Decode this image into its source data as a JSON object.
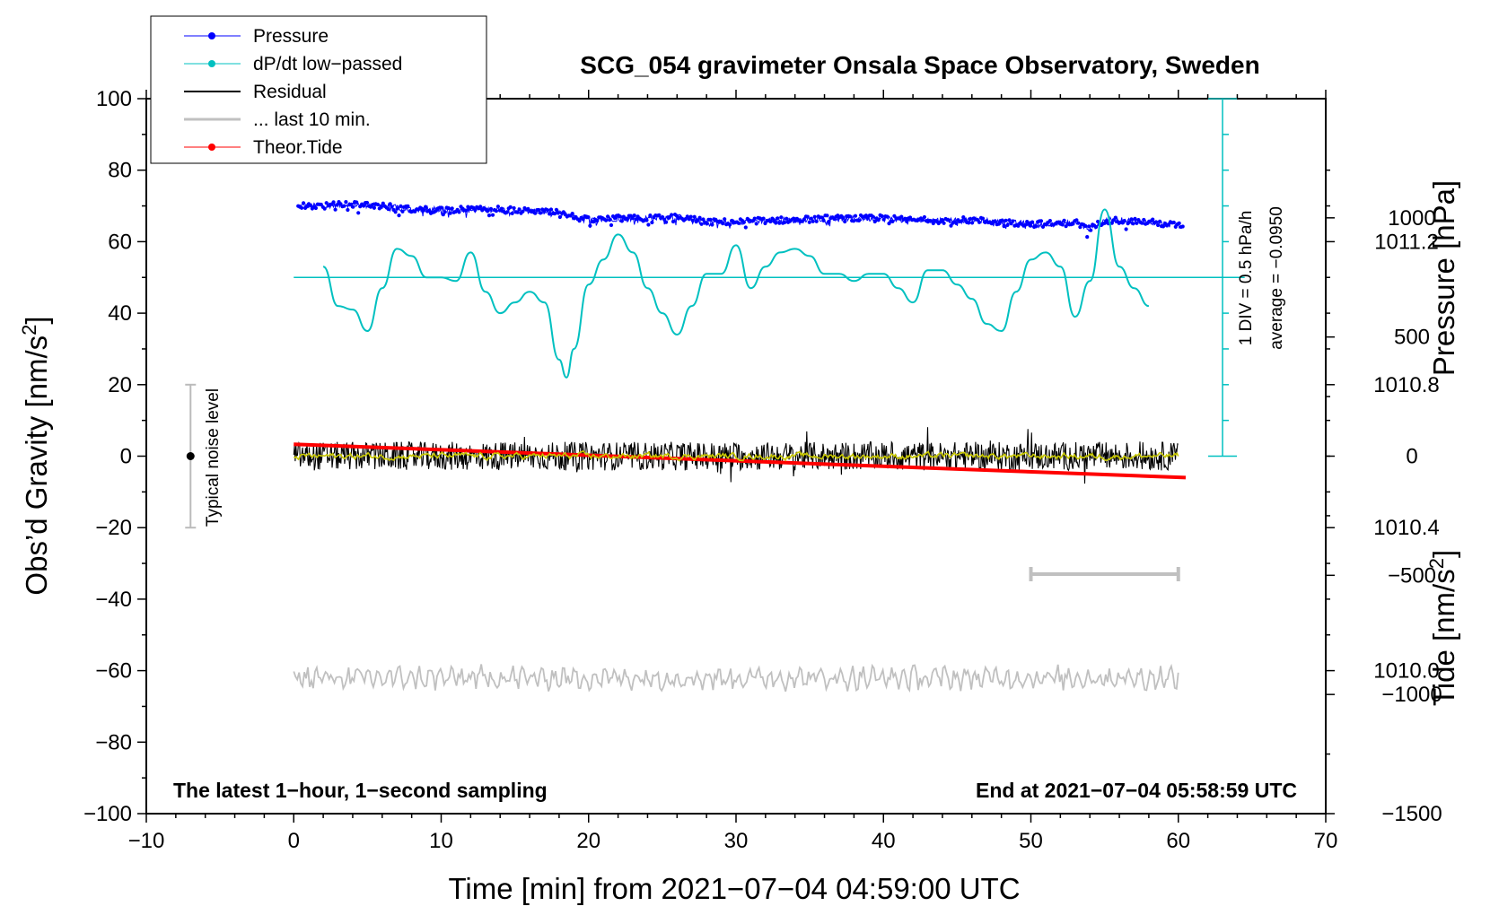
{
  "chart_data": {
    "type": "line",
    "title": "SCG_054 gravimeter Onsala Space Observatory, Sweden",
    "xlabel": "Time [min] from 2021−07−04 04:59:00 UTC",
    "ylabel_left": "Obs’d Gravity [nm/s",
    "ylabel_left_sup": "2",
    "ylabel_left_close": "]",
    "ylabel_right_top": "Pressure [hPa]",
    "ylabel_right_bottom": "Tide [nm/s",
    "ylabel_right_bottom_sup": "2",
    "ylabel_right_bottom_close": "]",
    "xlim": [
      -10,
      70
    ],
    "ylim_left": [
      -100,
      100
    ],
    "pressure_axis": {
      "range_hPa": [
        1009.6,
        1011.6
      ],
      "ticks": [
        1010.0,
        1010.4,
        1010.8,
        1011.2
      ],
      "tick_labels": [
        "1010.0",
        "1010.4",
        "1010.8",
        "1011.2"
      ]
    },
    "tide_axis": {
      "range": [
        -1500,
        1500
      ],
      "ticks": [
        -1500,
        -1000,
        -500,
        0,
        500,
        1000
      ],
      "tick_labels": [
        "−1500",
        "−1000",
        "−500",
        "0",
        "500",
        "1000"
      ]
    },
    "x_ticks": [
      -10,
      0,
      10,
      20,
      30,
      40,
      50,
      60,
      70
    ],
    "x_tick_labels": [
      "−10",
      "0",
      "10",
      "20",
      "30",
      "40",
      "50",
      "60",
      "70"
    ],
    "y_ticks": [
      -100,
      -80,
      -60,
      -40,
      -20,
      0,
      20,
      40,
      60,
      80,
      100
    ],
    "y_tick_labels": [
      "−100",
      "−80",
      "−60",
      "−40",
      "−20",
      "0",
      "20",
      "40",
      "60",
      "80",
      "100"
    ],
    "legend": [
      {
        "label": "Pressure",
        "color": "#0000ff",
        "marker": true
      },
      {
        "label": "dP/dt low−passed",
        "color": "#00c0c0",
        "marker": true
      },
      {
        "label": "Residual",
        "color": "#000000",
        "marker": false
      },
      {
        "label": "... last 10 min.",
        "color": "#c0c0c0",
        "marker": false
      },
      {
        "label": "Theor.Tide",
        "color": "#ff0000",
        "marker": true
      }
    ],
    "legend_position": "top-left",
    "noise_bar": {
      "label": "Typical noise level",
      "x": -7,
      "center": 0,
      "half_range": 20
    },
    "dpdt_scale": {
      "label_div": "1 DIV = 0.5 hPa/h",
      "label_avg": "average = −0.0950",
      "x": 63,
      "baseline": 50,
      "top": 100,
      "bottom": 0,
      "div_size": 10
    },
    "ten_min_bar": {
      "x_start": 50,
      "x_end": 60,
      "y": -33
    },
    "notes": {
      "bottom_left": "The latest 1−hour, 1−second sampling",
      "bottom_right": "End at 2021−07−04 05:58:59 UTC"
    },
    "series": [
      {
        "name": "Pressure",
        "color": "#0000ff",
        "units": "gravity-axis",
        "x": [
          0,
          2,
          4,
          6,
          8,
          10,
          12,
          14,
          16,
          18,
          20,
          22,
          24,
          26,
          28,
          30,
          32,
          34,
          36,
          38,
          40,
          42,
          44,
          46,
          48,
          50,
          52,
          53,
          54,
          55,
          56,
          58,
          60
        ],
        "y": [
          70,
          70,
          70.5,
          70,
          69,
          69,
          69,
          69,
          68.5,
          68,
          66,
          66.5,
          66.5,
          67,
          65.5,
          65.5,
          66,
          66,
          66.5,
          66.5,
          66.5,
          66,
          66,
          66,
          65.5,
          65,
          65,
          65.5,
          63.5,
          66,
          66,
          65.5,
          64.5
        ]
      },
      {
        "name": "dP/dt low-passed",
        "color": "#00c0c0",
        "units": "gravity-axis",
        "x": [
          2,
          3,
          4,
          5,
          6,
          7,
          8,
          9,
          10,
          11,
          12,
          13,
          14,
          15,
          16,
          17,
          18,
          18.5,
          19,
          20,
          21,
          22,
          23,
          24,
          25,
          26,
          27,
          28,
          29,
          30,
          31,
          32,
          33,
          34,
          35,
          36,
          37,
          38,
          39,
          40,
          41,
          42,
          43,
          44,
          45,
          46,
          47,
          48,
          49,
          50,
          51,
          52,
          53,
          54,
          55,
          56,
          57,
          58
        ],
        "y": [
          53,
          42,
          41,
          35,
          47,
          58,
          56,
          50,
          50,
          49,
          57,
          46,
          40,
          43,
          46,
          43,
          27,
          22,
          30,
          48,
          55,
          62,
          57,
          47,
          40,
          34,
          42,
          51,
          51,
          59,
          47,
          53,
          57,
          58,
          56,
          51,
          51,
          49,
          51,
          51,
          47,
          43,
          52,
          52,
          48,
          44,
          37,
          35,
          46,
          55,
          57,
          53,
          39,
          49,
          69,
          53,
          47,
          42
        ]
      },
      {
        "name": "Residual",
        "color": "#000000",
        "units": "gravity-axis",
        "x_range": [
          0,
          60
        ],
        "amplitude": 4,
        "level": 0
      },
      {
        "name": "Residual smoothed",
        "color": "#c8c800",
        "units": "gravity-axis",
        "x_range": [
          0,
          60
        ],
        "amplitude": 1,
        "level": 0
      },
      {
        "name": "... last 10 min.",
        "color": "#c0c0c0",
        "units": "gravity-axis",
        "x_range": [
          0,
          60
        ],
        "amplitude": 3,
        "level": -62
      },
      {
        "name": "Theor.Tide",
        "color": "#ff0000",
        "units": "tide-axis",
        "x": [
          0,
          60.5
        ],
        "y": [
          50,
          -90
        ]
      }
    ]
  }
}
